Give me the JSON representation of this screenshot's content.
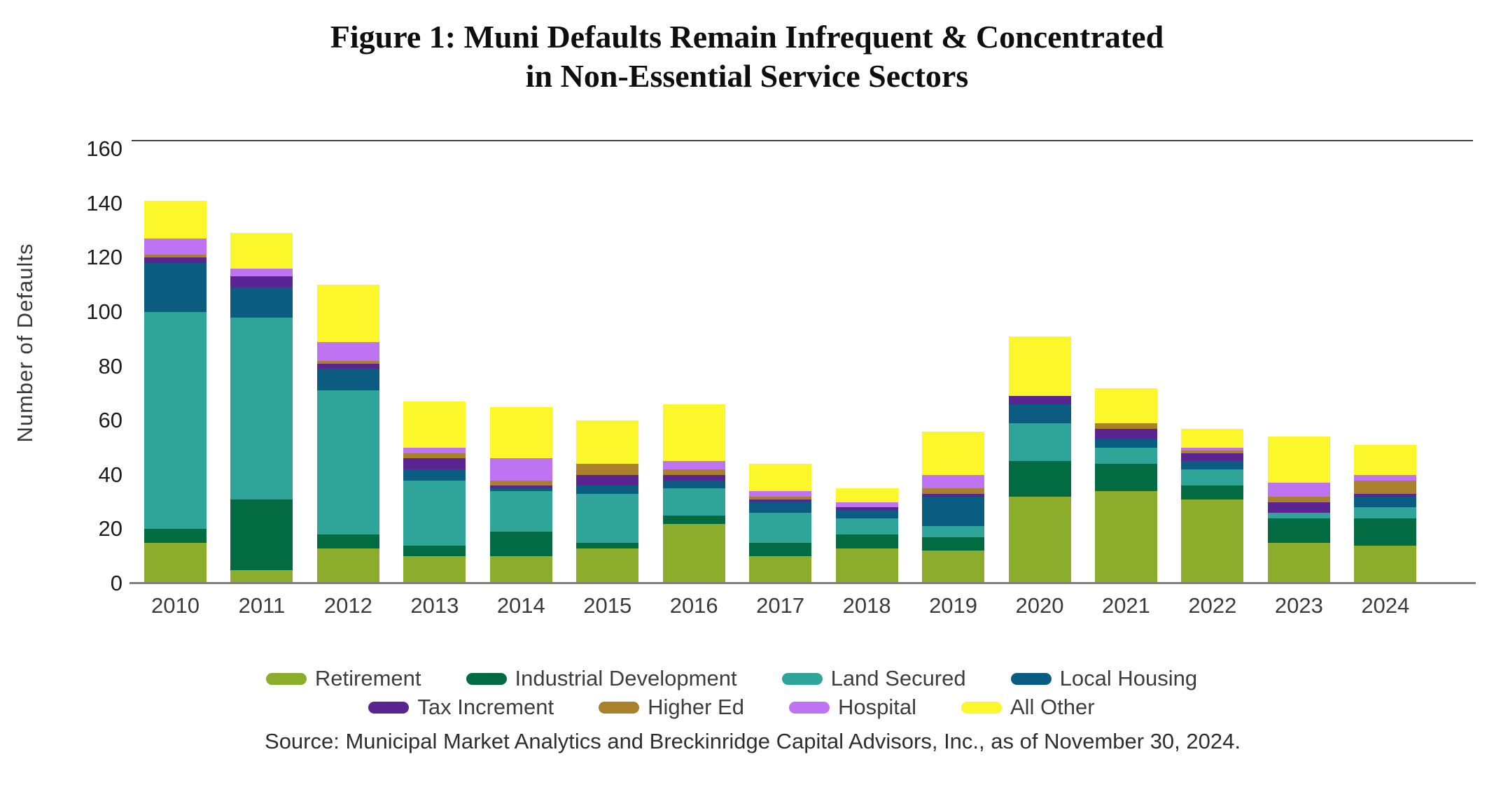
{
  "figure": {
    "title_line1": "Figure 1: Muni Defaults Remain Infrequent & Concentrated",
    "title_line2": "in Non-Essential Service Sectors",
    "y_axis_title": "Number of Defaults",
    "source": "Source: Municipal Market Analytics and Breckinridge Capital Advisors, Inc., as of November 30, 2024."
  },
  "chart_data": {
    "type": "bar",
    "stacked": true,
    "title": "Figure 1: Muni Defaults Remain Infrequent & Concentrated in Non-Essential Service Sectors",
    "xlabel": "",
    "ylabel": "Number of Defaults",
    "ylim": [
      0,
      160
    ],
    "ytick_step": 20,
    "yticks": [
      0,
      20,
      40,
      60,
      80,
      100,
      120,
      140,
      160
    ],
    "grid": false,
    "legend_position": "bottom",
    "categories": [
      "2010",
      "2011",
      "2012",
      "2013",
      "2014",
      "2015",
      "2016",
      "2017",
      "2018",
      "2019",
      "2020",
      "2021",
      "2022",
      "2023",
      "2024"
    ],
    "series": [
      {
        "name": "Retirement",
        "color": "#8CAC2C",
        "values": [
          15,
          5,
          13,
          10,
          10,
          13,
          22,
          10,
          13,
          12,
          32,
          34,
          31,
          15,
          14
        ]
      },
      {
        "name": "Industrial Development",
        "color": "#036B42",
        "values": [
          5,
          26,
          5,
          4,
          9,
          2,
          3,
          5,
          5,
          5,
          13,
          10,
          5,
          9,
          10
        ]
      },
      {
        "name": "Land Secured",
        "color": "#2FA599",
        "values": [
          80,
          67,
          53,
          24,
          15,
          18,
          10,
          11,
          6,
          4,
          14,
          6,
          6,
          2,
          4
        ]
      },
      {
        "name": "Local Housing",
        "color": "#0A5D81",
        "values": [
          18,
          11,
          8,
          4,
          1,
          3,
          3,
          4,
          3,
          11,
          7,
          3,
          3,
          0,
          4
        ]
      },
      {
        "name": "Tax Increment",
        "color": "#5A2590",
        "values": [
          2,
          4,
          2,
          4,
          1,
          4,
          2,
          1,
          1,
          1,
          3,
          4,
          3,
          4,
          1
        ]
      },
      {
        "name": "Higher Ed",
        "color": "#A9802C",
        "values": [
          1,
          0,
          1,
          2,
          2,
          4,
          2,
          1,
          0,
          2,
          0,
          2,
          1,
          2,
          5
        ]
      },
      {
        "name": "Hospital",
        "color": "#BE74F2",
        "values": [
          6,
          3,
          7,
          2,
          8,
          0,
          3,
          2,
          2,
          5,
          0,
          0,
          1,
          5,
          2
        ]
      },
      {
        "name": "All Other",
        "color": "#FBF72B",
        "values": [
          14,
          13,
          21,
          17,
          19,
          16,
          21,
          10,
          5,
          16,
          22,
          13,
          7,
          17,
          11
        ]
      }
    ],
    "totals": [
      141,
      129,
      110,
      67,
      65,
      60,
      66,
      44,
      35,
      56,
      91,
      72,
      57,
      54,
      51
    ],
    "legend_rows": [
      [
        0,
        1,
        2,
        3
      ],
      [
        4,
        5,
        6,
        7
      ]
    ]
  }
}
